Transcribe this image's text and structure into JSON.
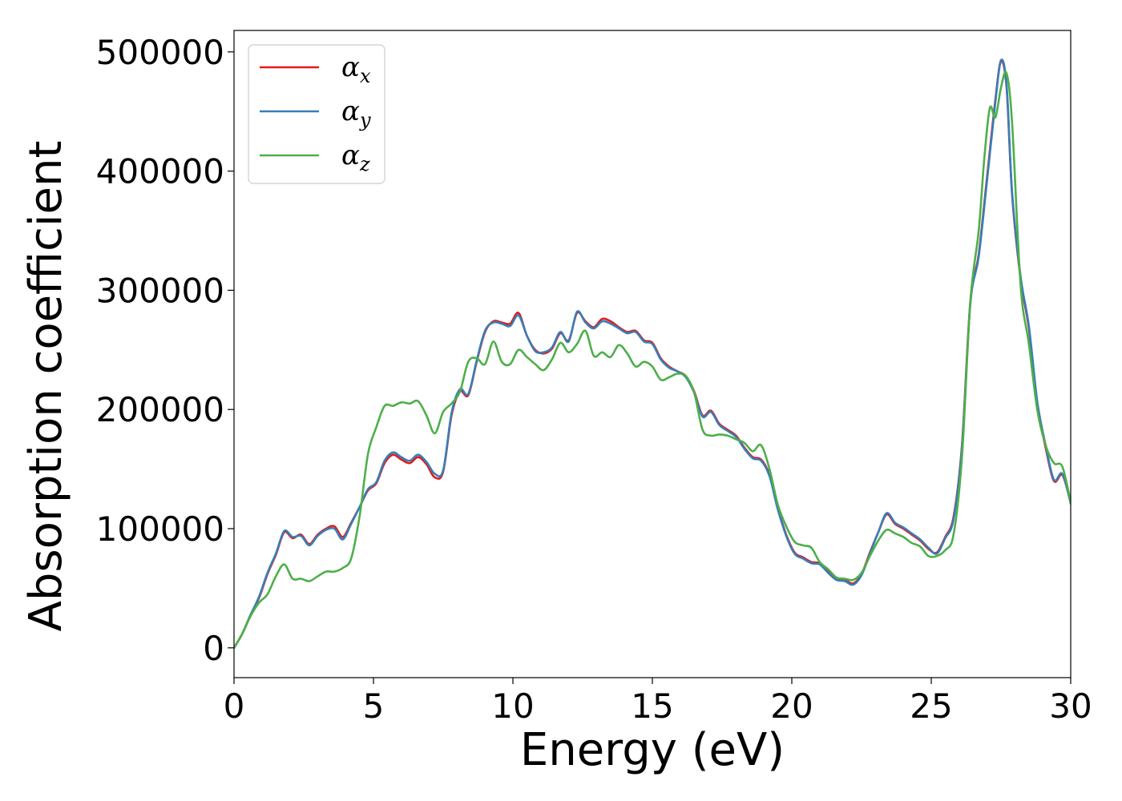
{
  "chart_data": {
    "type": "line",
    "xlabel": "Energy (eV)",
    "ylabel": "Absorption coefficient",
    "xlim": [
      0,
      30
    ],
    "ylim": [
      -25000,
      518000
    ],
    "xticks": [
      "0",
      "5",
      "10",
      "15",
      "20",
      "25",
      "30"
    ],
    "xtick_values": [
      0,
      5,
      10,
      15,
      20,
      25,
      30
    ],
    "yticks": [
      "0",
      "100000",
      "200000",
      "300000",
      "400000",
      "500000"
    ],
    "ytick_values": [
      0,
      100000,
      200000,
      300000,
      400000,
      500000
    ],
    "grid": false,
    "legend_position": "top-left",
    "series": [
      {
        "name": "α_x",
        "legend_base": "α",
        "legend_sub": "x",
        "color": "#e41a1c",
        "x": [
          0,
          0.3,
          0.6,
          0.9,
          1.2,
          1.5,
          1.8,
          2.1,
          2.4,
          2.7,
          3.0,
          3.3,
          3.6,
          3.9,
          4.2,
          4.5,
          4.8,
          5.1,
          5.4,
          5.7,
          6.0,
          6.3,
          6.6,
          6.9,
          7.2,
          7.5,
          7.8,
          8.1,
          8.4,
          8.7,
          9.0,
          9.3,
          9.6,
          9.9,
          10.2,
          10.5,
          10.8,
          11.1,
          11.4,
          11.7,
          12.0,
          12.3,
          12.6,
          12.9,
          13.2,
          13.5,
          13.8,
          14.1,
          14.4,
          14.7,
          15.0,
          15.3,
          15.6,
          15.9,
          16.2,
          16.5,
          16.8,
          17.1,
          17.4,
          17.7,
          18.0,
          18.3,
          18.6,
          18.9,
          19.2,
          19.5,
          19.8,
          20.1,
          20.4,
          20.7,
          21.0,
          21.3,
          21.6,
          21.9,
          22.2,
          22.5,
          22.8,
          23.1,
          23.4,
          23.7,
          24.0,
          24.3,
          24.6,
          24.9,
          25.2,
          25.5,
          25.8,
          26.1,
          26.4,
          26.7,
          27.0,
          27.3,
          27.5,
          27.7,
          27.9,
          28.2,
          28.5,
          28.8,
          29.1,
          29.4,
          29.7,
          30.0
        ],
        "y": [
          0,
          12000,
          28000,
          42000,
          62000,
          78000,
          97000,
          92000,
          95000,
          87000,
          95000,
          100000,
          102000,
          93000,
          105000,
          118000,
          132000,
          138000,
          155000,
          162000,
          158000,
          155000,
          160000,
          154000,
          143000,
          148000,
          195000,
          215000,
          212000,
          240000,
          265000,
          274000,
          273000,
          272000,
          281000,
          262000,
          250000,
          247000,
          251000,
          264000,
          258000,
          281000,
          274000,
          269000,
          276000,
          274000,
          269000,
          265000,
          266000,
          258000,
          256000,
          243000,
          236000,
          232000,
          228000,
          215000,
          195000,
          199000,
          188000,
          183000,
          178000,
          168000,
          160000,
          158000,
          145000,
          117000,
          95000,
          80000,
          76000,
          72000,
          71000,
          64000,
          58000,
          57000,
          54000,
          62000,
          80000,
          97000,
          112000,
          104000,
          100000,
          95000,
          90000,
          83000,
          80000,
          93000,
          110000,
          170000,
          290000,
          330000,
          395000,
          460000,
          492000,
          470000,
          380000,
          310000,
          268000,
          205000,
          168000,
          140000,
          145000,
          122000
        ]
      },
      {
        "name": "α_y",
        "legend_base": "α",
        "legend_sub": "y",
        "color": "#377eb8",
        "x": [
          0,
          0.3,
          0.6,
          0.9,
          1.2,
          1.5,
          1.8,
          2.1,
          2.4,
          2.7,
          3.0,
          3.3,
          3.6,
          3.9,
          4.2,
          4.5,
          4.8,
          5.1,
          5.4,
          5.7,
          6.0,
          6.3,
          6.6,
          6.9,
          7.2,
          7.5,
          7.8,
          8.1,
          8.4,
          8.7,
          9.0,
          9.3,
          9.6,
          9.9,
          10.2,
          10.5,
          10.8,
          11.1,
          11.4,
          11.7,
          12.0,
          12.3,
          12.6,
          12.9,
          13.2,
          13.5,
          13.8,
          14.1,
          14.4,
          14.7,
          15.0,
          15.3,
          15.6,
          15.9,
          16.2,
          16.5,
          16.8,
          17.1,
          17.4,
          17.7,
          18.0,
          18.3,
          18.6,
          18.9,
          19.2,
          19.5,
          19.8,
          20.1,
          20.4,
          20.7,
          21.0,
          21.3,
          21.6,
          21.9,
          22.2,
          22.5,
          22.8,
          23.1,
          23.4,
          23.7,
          24.0,
          24.3,
          24.6,
          24.9,
          25.2,
          25.5,
          25.8,
          26.1,
          26.4,
          26.7,
          27.0,
          27.3,
          27.5,
          27.7,
          27.9,
          28.2,
          28.5,
          28.8,
          29.1,
          29.4,
          29.7,
          30.0
        ],
        "y": [
          0,
          12000,
          28000,
          43000,
          63000,
          79000,
          98000,
          93000,
          94000,
          86000,
          94000,
          99000,
          100000,
          91000,
          104000,
          118000,
          133000,
          139000,
          157000,
          164000,
          160000,
          157000,
          162000,
          156000,
          146000,
          149000,
          197000,
          217000,
          213000,
          241000,
          266000,
          273000,
          272000,
          270000,
          279000,
          262000,
          249000,
          248000,
          252000,
          265000,
          257000,
          282000,
          273000,
          268000,
          274000,
          272000,
          268000,
          264000,
          265000,
          257000,
          255000,
          242000,
          235000,
          232000,
          227000,
          214000,
          194000,
          198000,
          187000,
          182000,
          177000,
          167000,
          159000,
          157000,
          144000,
          116000,
          94000,
          79000,
          75000,
          71000,
          70000,
          63000,
          57000,
          56000,
          53000,
          61000,
          79000,
          97000,
          113000,
          105000,
          101000,
          96000,
          91000,
          84000,
          79000,
          92000,
          108000,
          168000,
          288000,
          328000,
          392000,
          458000,
          493000,
          472000,
          382000,
          312000,
          270000,
          207000,
          170000,
          141000,
          146000,
          121000
        ]
      },
      {
        "name": "α_z",
        "legend_base": "α",
        "legend_sub": "z",
        "color": "#4daf4a",
        "x": [
          0,
          0.3,
          0.6,
          0.9,
          1.2,
          1.5,
          1.8,
          2.1,
          2.4,
          2.7,
          3.0,
          3.3,
          3.6,
          3.9,
          4.2,
          4.5,
          4.8,
          5.1,
          5.4,
          5.7,
          6.0,
          6.3,
          6.6,
          6.9,
          7.2,
          7.5,
          7.8,
          8.1,
          8.4,
          8.7,
          9.0,
          9.3,
          9.6,
          9.9,
          10.2,
          10.5,
          10.8,
          11.1,
          11.4,
          11.7,
          12.0,
          12.3,
          12.6,
          12.9,
          13.2,
          13.5,
          13.8,
          14.1,
          14.4,
          14.7,
          15.0,
          15.3,
          15.6,
          15.9,
          16.2,
          16.5,
          16.8,
          17.1,
          17.4,
          17.7,
          18.0,
          18.3,
          18.6,
          18.9,
          19.2,
          19.5,
          19.8,
          20.1,
          20.4,
          20.7,
          21.0,
          21.3,
          21.6,
          21.9,
          22.2,
          22.5,
          22.8,
          23.1,
          23.4,
          23.7,
          24.0,
          24.3,
          24.6,
          24.9,
          25.2,
          25.5,
          25.8,
          26.1,
          26.4,
          26.7,
          26.9,
          27.1,
          27.3,
          27.5,
          27.7,
          27.9,
          28.2,
          28.5,
          28.8,
          29.1,
          29.4,
          29.7,
          30.0
        ],
        "y": [
          0,
          12000,
          27000,
          38000,
          45000,
          60000,
          70000,
          58000,
          58000,
          56000,
          60000,
          64000,
          64000,
          67000,
          75000,
          110000,
          162000,
          185000,
          203000,
          203000,
          206000,
          205000,
          207000,
          195000,
          180000,
          198000,
          205000,
          215000,
          240000,
          243000,
          238000,
          257000,
          240000,
          238000,
          250000,
          244000,
          238000,
          233000,
          242000,
          256000,
          248000,
          255000,
          266000,
          245000,
          248000,
          244000,
          254000,
          247000,
          236000,
          240000,
          236000,
          225000,
          227000,
          230000,
          228000,
          214000,
          183000,
          178000,
          179000,
          178000,
          175000,
          172000,
          165000,
          170000,
          150000,
          120000,
          102000,
          89000,
          86000,
          84000,
          72000,
          66000,
          59000,
          58000,
          57000,
          63000,
          77000,
          90000,
          99000,
          96000,
          93000,
          88000,
          85000,
          77000,
          77000,
          82000,
          95000,
          160000,
          290000,
          350000,
          410000,
          453000,
          445000,
          470000,
          482000,
          440000,
          305000,
          255000,
          200000,
          170000,
          155000,
          152000,
          122000
        ]
      }
    ]
  }
}
